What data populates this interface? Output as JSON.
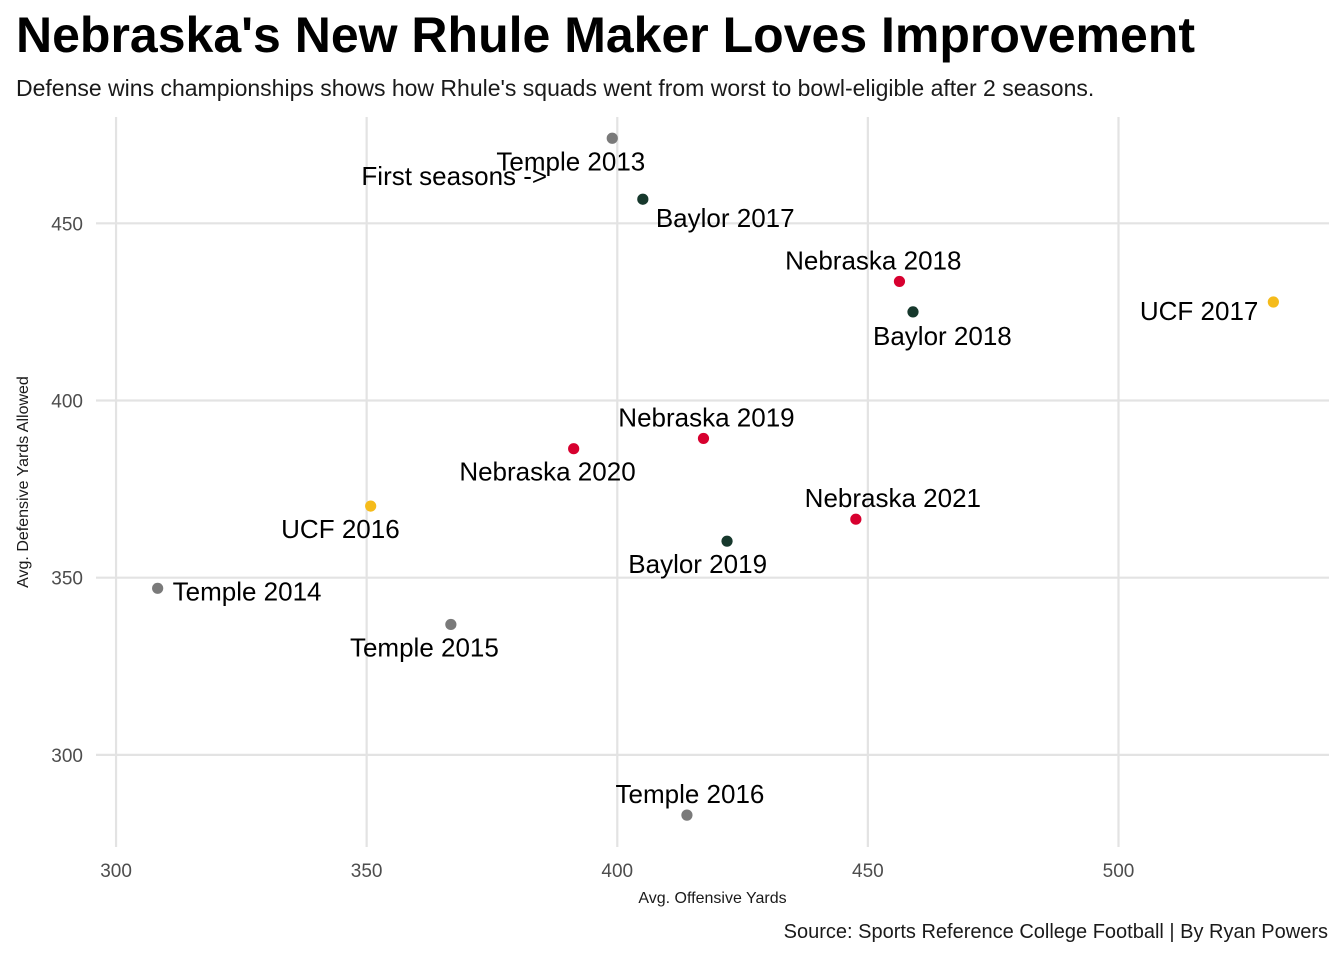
{
  "chart_data": {
    "type": "scatter",
    "title": "Nebraska's New Rhule Maker Loves Improvement",
    "subtitle": "Defense wins championships shows how Rhule's squads went from worst to bowl-eligible after 2 seasons.",
    "caption": "Source: Sports Reference College Football | By Ryan Powers",
    "xlabel": "Avg. Offensive Yards",
    "ylabel": "Avg. Defensive Yards Allowed",
    "xlim": [
      296,
      542
    ],
    "ylim": [
      274,
      480
    ],
    "x_ticks": [
      300,
      350,
      400,
      450,
      500
    ],
    "y_ticks": [
      300,
      350,
      400,
      450
    ],
    "grid": true,
    "legend": "none",
    "colors": {
      "Temple": "#7a7a7a",
      "Baylor": "#16382c",
      "UCF": "#f5bb1b",
      "Nebraska": "#d7002f"
    },
    "points": [
      {
        "label": "Temple 2013",
        "team": "Temple",
        "x": 399.0,
        "y": 474.0,
        "anchor": "below-left"
      },
      {
        "label": "Temple 2014",
        "team": "Temple",
        "x": 308.3,
        "y": 347.0,
        "anchor": "right"
      },
      {
        "label": "Temple 2015",
        "team": "Temple",
        "x": 366.8,
        "y": 336.8,
        "anchor": "below-left"
      },
      {
        "label": "Temple 2016",
        "team": "Temple",
        "x": 413.9,
        "y": 283.0,
        "anchor": "above"
      },
      {
        "label": "Baylor 2017",
        "team": "Baylor",
        "x": 405.1,
        "y": 456.8,
        "anchor": "below-right"
      },
      {
        "label": "Baylor 2018",
        "team": "Baylor",
        "x": 459.0,
        "y": 425.0,
        "anchor": "below-right"
      },
      {
        "label": "Baylor 2019",
        "team": "Baylor",
        "x": 421.9,
        "y": 360.3,
        "anchor": "below-left"
      },
      {
        "label": "UCF 2016",
        "team": "UCF",
        "x": 350.8,
        "y": 370.2,
        "anchor": "below-left"
      },
      {
        "label": "UCF 2017",
        "team": "UCF",
        "x": 530.9,
        "y": 427.8,
        "anchor": "left"
      },
      {
        "label": "Nebraska 2018",
        "team": "Nebraska",
        "x": 456.3,
        "y": 433.6,
        "anchor": "above-left"
      },
      {
        "label": "Nebraska 2019",
        "team": "Nebraska",
        "x": 417.2,
        "y": 389.3,
        "anchor": "above"
      },
      {
        "label": "Nebraska 2020",
        "team": "Nebraska",
        "x": 391.3,
        "y": 386.4,
        "anchor": "below-left"
      },
      {
        "label": "Nebraska 2021",
        "team": "Nebraska",
        "x": 447.6,
        "y": 366.5,
        "anchor": "above-right"
      }
    ],
    "annotations": [
      {
        "text": "First seasons ->",
        "x": 386.0,
        "y": 460.8
      }
    ]
  }
}
